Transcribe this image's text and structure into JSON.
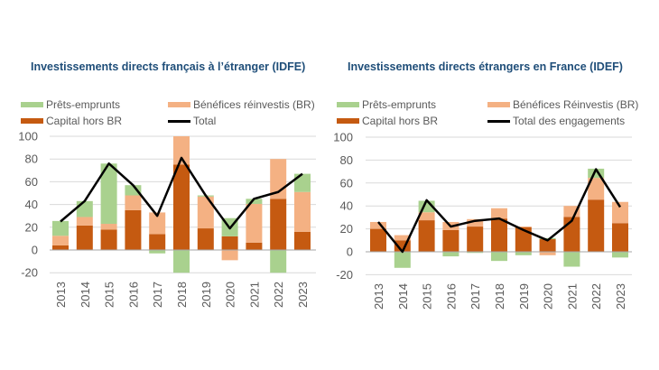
{
  "colors": {
    "prets": "#a9d18e",
    "br": "#f4b183",
    "capital": "#c55a11",
    "total": "#000000",
    "title": "#1f4e79"
  },
  "chart_data": [
    {
      "type": "bar",
      "stacked": true,
      "title": "Investissements directs français à l’étranger (IDFE)",
      "categories": [
        "2013",
        "2014",
        "2015",
        "2016",
        "2017",
        "2018",
        "2019",
        "2020",
        "2021",
        "2022",
        "2023"
      ],
      "ylim": [
        -20,
        100
      ],
      "yticks": [
        "100",
        "80",
        "60",
        "40",
        "20",
        "0",
        "-20"
      ],
      "grid": true,
      "legend": "top",
      "series": [
        {
          "name": "Prêts-emprunts",
          "kind": "bar",
          "values": [
            13,
            14,
            53,
            9,
            -3,
            -20,
            1,
            16,
            4.5,
            -20,
            16
          ]
        },
        {
          "name": "Bénéfices réinvestis (BR)",
          "kind": "bar",
          "values": [
            8.5,
            7.5,
            5,
            13,
            19,
            25,
            28,
            -9,
            34,
            35,
            35
          ]
        },
        {
          "name": "Capital hors BR",
          "kind": "bar",
          "values": [
            4,
            21.5,
            18,
            35,
            14,
            75,
            19,
            12,
            6.5,
            45,
            16
          ]
        },
        {
          "name": "Total",
          "kind": "line",
          "values": [
            25,
            43,
            76,
            57,
            30,
            81,
            48,
            19,
            45,
            51,
            67
          ]
        }
      ]
    },
    {
      "type": "bar",
      "stacked": true,
      "title": "Investissements directs étrangers en France (IDEF)",
      "categories": [
        "2013",
        "2014",
        "2015",
        "2016",
        "2017",
        "2018",
        "2019",
        "2020",
        "2021",
        "2022",
        "2023"
      ],
      "ylim": [
        -20,
        100
      ],
      "yticks": [
        "100",
        "80",
        "60",
        "40",
        "20",
        "0",
        "-20"
      ],
      "grid": true,
      "legend": "top",
      "series": [
        {
          "name": "Prêts-emprunts",
          "kind": "bar",
          "values": [
            0,
            -14,
            10,
            -4,
            -1,
            -8,
            -3,
            1,
            -13,
            8,
            -5
          ]
        },
        {
          "name": "Bénéfices Réinvestis (BR)",
          "kind": "bar",
          "values": [
            6,
            4.5,
            7,
            7,
            6.5,
            9,
            0.5,
            -3,
            9.5,
            19,
            18.5
          ]
        },
        {
          "name": "Capital hors BR",
          "kind": "bar",
          "values": [
            20,
            10,
            27.5,
            19,
            22,
            29,
            21.5,
            11,
            30.5,
            45.5,
            25
          ]
        },
        {
          "name": "Total des engagements",
          "kind": "line",
          "values": [
            26,
            0,
            45,
            22,
            27,
            29,
            19,
            10,
            27,
            72,
            39
          ]
        }
      ]
    }
  ]
}
